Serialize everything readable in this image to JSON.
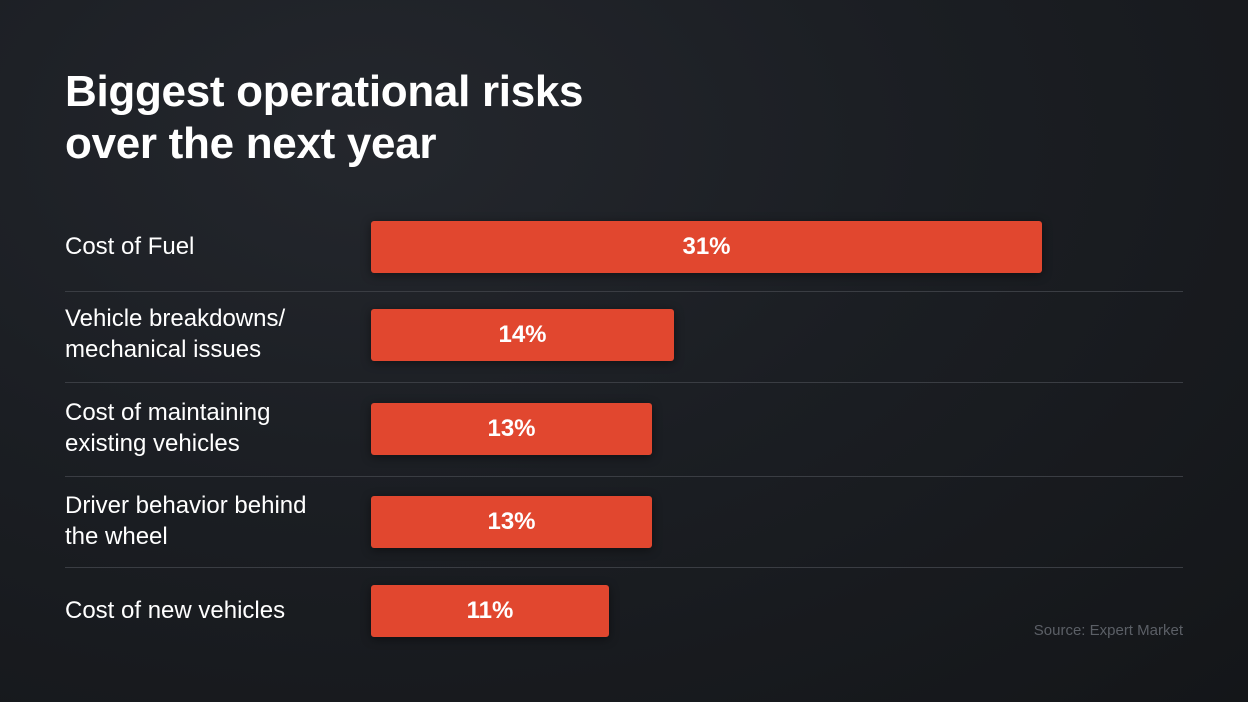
{
  "chart_data": {
    "type": "bar",
    "orientation": "horizontal",
    "title_lines": [
      "Biggest operational risks",
      "over the next year"
    ],
    "categories": [
      [
        "Cost of Fuel"
      ],
      [
        "Vehicle breakdowns/",
        "mechanical issues"
      ],
      [
        "Cost of maintaining",
        "existing vehicles"
      ],
      [
        "Driver behavior behind",
        "the wheel"
      ],
      [
        "Cost of new vehicles"
      ]
    ],
    "values": [
      31,
      14,
      13,
      13,
      11
    ],
    "value_labels": [
      "31%",
      "14%",
      "13%",
      "13%",
      "11%"
    ],
    "unit": "%",
    "xlim": [
      0,
      37.5
    ],
    "grid": false,
    "colors": {
      "bar": "#e1472f",
      "background": "#1b1e23",
      "divider": "#3a3d43",
      "source_text": "#5b5f66"
    }
  },
  "source": "Source: Expert Market"
}
